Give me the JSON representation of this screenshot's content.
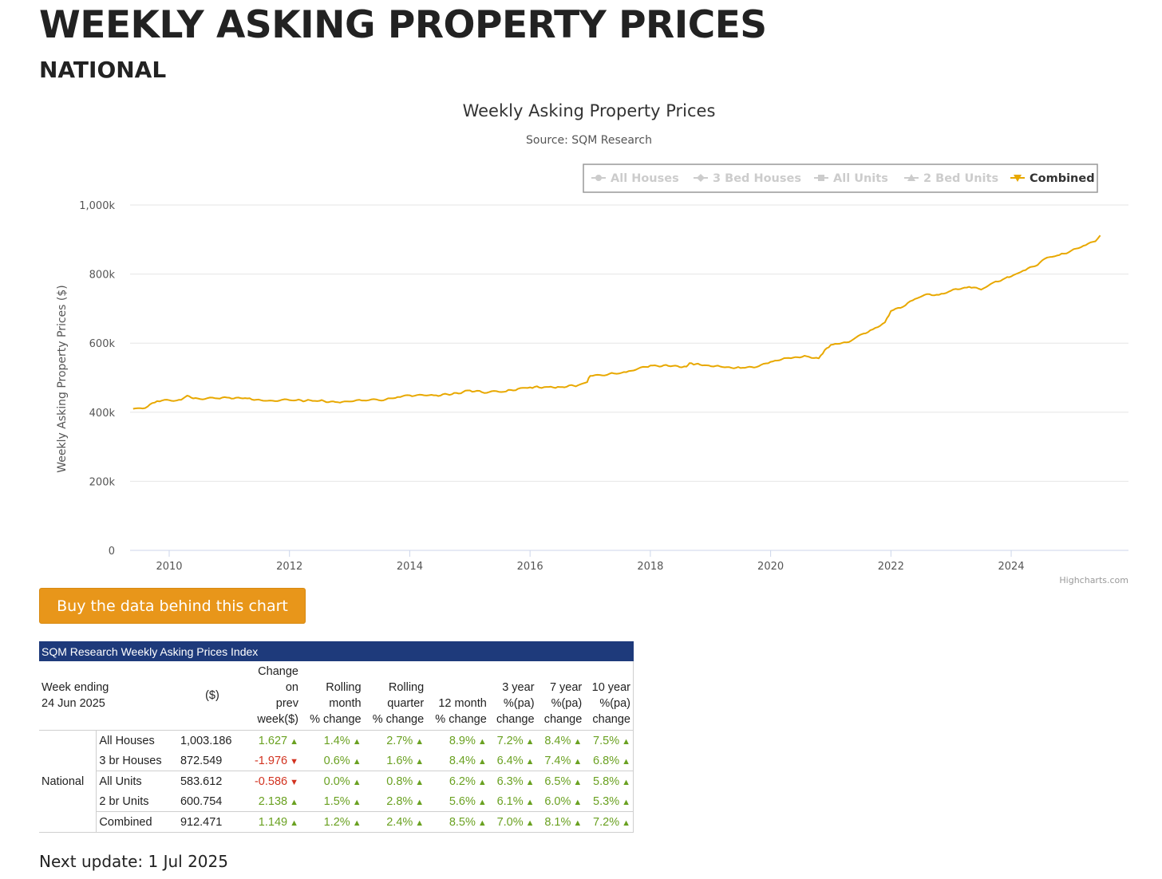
{
  "header": {
    "title": "WEEKLY ASKING PROPERTY PRICES",
    "subtitle": "NATIONAL"
  },
  "chart_data": {
    "type": "line",
    "title": "Weekly Asking Property Prices",
    "subtitle": "Source: SQM Research",
    "ylabel": "Weekly Asking Property Prices ($)",
    "xlabel": "",
    "ylim": [
      0,
      1000000
    ],
    "y_ticks": [
      {
        "value": 0,
        "label": "0"
      },
      {
        "value": 200000,
        "label": "200k"
      },
      {
        "value": 400000,
        "label": "400k"
      },
      {
        "value": 600000,
        "label": "600k"
      },
      {
        "value": 800000,
        "label": "800k"
      },
      {
        "value": 1000000,
        "label": "1,000k"
      }
    ],
    "x_ticks": [
      2010,
      2012,
      2014,
      2016,
      2018,
      2020,
      2022,
      2024
    ],
    "xlim": [
      2009.35,
      2025.95
    ],
    "grid": true,
    "legend_placement": "top-right",
    "legend": [
      {
        "name": "All Houses",
        "visible": false,
        "symbol": "circle"
      },
      {
        "name": "3 Bed Houses",
        "visible": false,
        "symbol": "diamond"
      },
      {
        "name": "All Units",
        "visible": false,
        "symbol": "square"
      },
      {
        "name": "2 Bed Units",
        "visible": false,
        "symbol": "triangle"
      },
      {
        "name": "Combined",
        "visible": true,
        "symbol": "triangle-down"
      }
    ],
    "series": [
      {
        "name": "Combined",
        "color": "#e8a800",
        "points": [
          [
            2009.4,
            410000
          ],
          [
            2009.6,
            412000
          ],
          [
            2009.8,
            432000
          ],
          [
            2010.2,
            436000
          ],
          [
            2010.3,
            448000
          ],
          [
            2010.4,
            440000
          ],
          [
            2010.8,
            440000
          ],
          [
            2011.0,
            442000
          ],
          [
            2011.3,
            440000
          ],
          [
            2011.6,
            433000
          ],
          [
            2012.0,
            435000
          ],
          [
            2012.5,
            433000
          ],
          [
            2012.8,
            429000
          ],
          [
            2013.2,
            434000
          ],
          [
            2013.6,
            437000
          ],
          [
            2013.8,
            444000
          ],
          [
            2014.0,
            449000
          ],
          [
            2014.4,
            449000
          ],
          [
            2014.7,
            452000
          ],
          [
            2015.0,
            463000
          ],
          [
            2015.2,
            458000
          ],
          [
            2015.6,
            460000
          ],
          [
            2015.8,
            468000
          ],
          [
            2016.0,
            472000
          ],
          [
            2016.5,
            473000
          ],
          [
            2016.8,
            478000
          ],
          [
            2016.95,
            487000
          ],
          [
            2017.0,
            505000
          ],
          [
            2017.4,
            512000
          ],
          [
            2017.6,
            516000
          ],
          [
            2018.0,
            535000
          ],
          [
            2018.3,
            534000
          ],
          [
            2018.6,
            532000
          ],
          [
            2018.65,
            542000
          ],
          [
            2018.9,
            536000
          ],
          [
            2019.2,
            531000
          ],
          [
            2019.5,
            528000
          ],
          [
            2019.8,
            533000
          ],
          [
            2020.0,
            546000
          ],
          [
            2020.3,
            557000
          ],
          [
            2020.6,
            562000
          ],
          [
            2020.8,
            556000
          ],
          [
            2020.9,
            580000
          ],
          [
            2021.0,
            595000
          ],
          [
            2021.3,
            603000
          ],
          [
            2021.5,
            625000
          ],
          [
            2021.7,
            640000
          ],
          [
            2021.9,
            660000
          ],
          [
            2022.0,
            693000
          ],
          [
            2022.2,
            705000
          ],
          [
            2022.4,
            728000
          ],
          [
            2022.6,
            742000
          ],
          [
            2022.8,
            740000
          ],
          [
            2023.0,
            752000
          ],
          [
            2023.3,
            763000
          ],
          [
            2023.5,
            755000
          ],
          [
            2023.7,
            775000
          ],
          [
            2023.9,
            788000
          ],
          [
            2024.0,
            793000
          ],
          [
            2024.2,
            810000
          ],
          [
            2024.4,
            823000
          ],
          [
            2024.6,
            848000
          ],
          [
            2024.8,
            855000
          ],
          [
            2025.0,
            868000
          ],
          [
            2025.2,
            882000
          ],
          [
            2025.4,
            895000
          ],
          [
            2025.48,
            912000
          ]
        ]
      }
    ],
    "credits": "Highcharts.com"
  },
  "buy_button": {
    "label": "Buy the data behind this chart"
  },
  "index_table": {
    "caption": "SQM Research Weekly Asking Prices Index",
    "week_ending_label": "Week ending",
    "week_ending_date": "24 Jun 2025",
    "headers": {
      "price": "($)",
      "change_prev": [
        "Change",
        "on",
        "prev",
        "week($)"
      ],
      "rolling_month": [
        "Rolling",
        "month",
        "% change"
      ],
      "rolling_quarter": [
        "Rolling",
        "quarter",
        "% change"
      ],
      "twelve_month": [
        "12 month",
        "% change"
      ],
      "three_year": [
        "3 year",
        "%(pa)",
        "change"
      ],
      "seven_year": [
        "7 year",
        "%(pa)",
        "change"
      ],
      "ten_year": [
        "10 year",
        "%(pa)",
        "change"
      ]
    },
    "region": "National",
    "rows": [
      {
        "name": "All Houses",
        "price": "1,003.186",
        "change": "1.627",
        "change_dir": "up",
        "month": "1.4%",
        "quarter": "2.7%",
        "twelve": "8.9%",
        "y3": "7.2%",
        "y7": "8.4%",
        "y10": "7.5%"
      },
      {
        "name": "3 br Houses",
        "price": "872.549",
        "change": "-1.976",
        "change_dir": "down",
        "month": "0.6%",
        "quarter": "1.6%",
        "twelve": "8.4%",
        "y3": "6.4%",
        "y7": "7.4%",
        "y10": "6.8%"
      },
      {
        "name": "All Units",
        "price": "583.612",
        "change": "-0.586",
        "change_dir": "down",
        "month": "0.0%",
        "quarter": "0.8%",
        "twelve": "6.2%",
        "y3": "6.3%",
        "y7": "6.5%",
        "y10": "5.8%"
      },
      {
        "name": "2 br Units",
        "price": "600.754",
        "change": "2.138",
        "change_dir": "up",
        "month": "1.5%",
        "quarter": "2.8%",
        "twelve": "5.6%",
        "y3": "6.1%",
        "y7": "6.0%",
        "y10": "5.3%"
      },
      {
        "name": "Combined",
        "price": "912.471",
        "change": "1.149",
        "change_dir": "up",
        "month": "1.2%",
        "quarter": "2.4%",
        "twelve": "8.5%",
        "y3": "7.0%",
        "y7": "8.1%",
        "y10": "7.2%"
      }
    ]
  },
  "footer": {
    "next_update": "Next update: 1 Jul 2025"
  },
  "colors": {
    "line": "#e8a800",
    "button": "#e8961a",
    "table_header": "#1e3a7b",
    "up": "#6aa121",
    "down": "#d2321f"
  }
}
